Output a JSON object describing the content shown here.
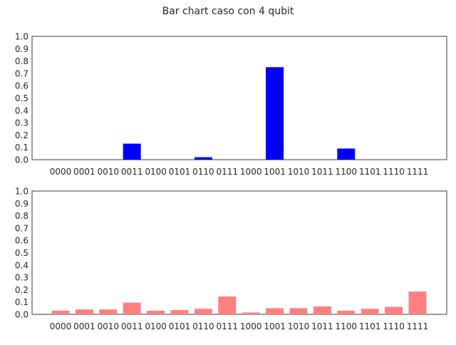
{
  "suptitle": "Bar chart caso con 4 qubit",
  "chart_data": [
    {
      "type": "bar",
      "title": "",
      "xlabel": "",
      "ylabel": "",
      "ylim": [
        0,
        1.0
      ],
      "yticks": [
        "0.0",
        "0.1",
        "0.2",
        "0.3",
        "0.4",
        "0.5",
        "0.6",
        "0.7",
        "0.8",
        "0.9",
        "1.0"
      ],
      "categories": [
        "0000",
        "0001",
        "0010",
        "0011",
        "0100",
        "0101",
        "0110",
        "0111",
        "1000",
        "1001",
        "1010",
        "1011",
        "1100",
        "1101",
        "1110",
        "1111"
      ],
      "values": [
        0,
        0,
        0,
        0.13,
        0,
        0,
        0.02,
        0,
        0,
        0.75,
        0,
        0,
        0.09,
        0,
        0,
        0
      ],
      "color": "#0000ff",
      "grid": false
    },
    {
      "type": "bar",
      "title": "",
      "xlabel": "",
      "ylabel": "",
      "ylim": [
        0,
        1.0
      ],
      "yticks": [
        "0.0",
        "0.1",
        "0.2",
        "0.3",
        "0.4",
        "0.5",
        "0.6",
        "0.7",
        "0.8",
        "0.9",
        "1.0"
      ],
      "categories": [
        "0000",
        "0001",
        "0010",
        "0011",
        "0100",
        "0101",
        "0110",
        "0111",
        "1000",
        "1001",
        "1010",
        "1011",
        "1100",
        "1101",
        "1110",
        "1111"
      ],
      "values": [
        0.03,
        0.04,
        0.04,
        0.095,
        0.03,
        0.035,
        0.045,
        0.145,
        0.015,
        0.05,
        0.05,
        0.065,
        0.03,
        0.045,
        0.06,
        0.185
      ],
      "color": "#ff8080",
      "grid": false
    }
  ]
}
